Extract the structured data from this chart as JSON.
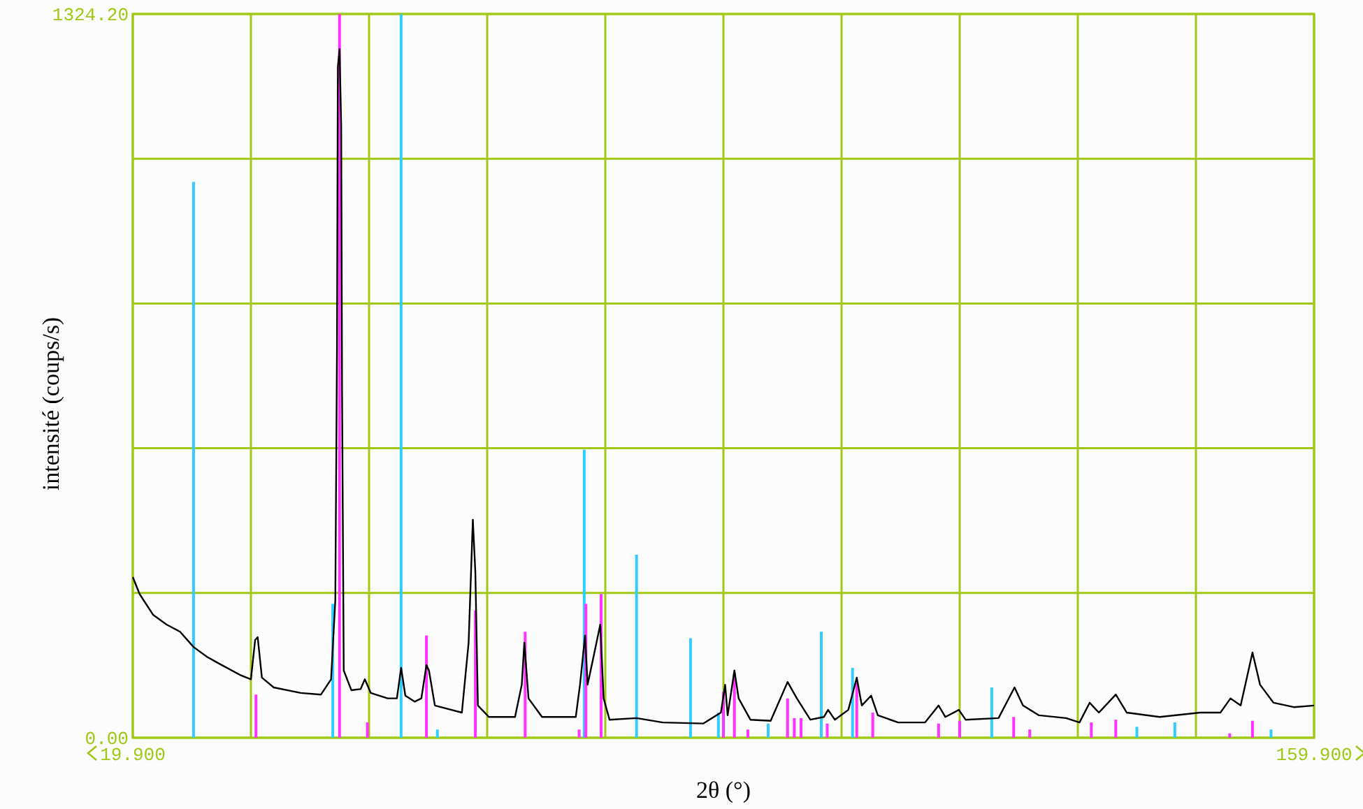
{
  "chart_data": {
    "type": "line",
    "xlabel": "2θ (°)",
    "ylabel": "intensité (coups/s)",
    "xlim": [
      19.9,
      159.9
    ],
    "ylim": [
      0,
      1324.2
    ],
    "xticks": [
      {
        "value": 19.9,
        "label": "19.900"
      },
      {
        "value": 33.9,
        "label": null
      },
      {
        "value": 47.9,
        "label": null
      },
      {
        "value": 61.9,
        "label": null
      },
      {
        "value": 75.9,
        "label": null
      },
      {
        "value": 89.9,
        "label": null
      },
      {
        "value": 103.9,
        "label": null
      },
      {
        "value": 117.9,
        "label": null
      },
      {
        "value": 131.9,
        "label": null
      },
      {
        "value": 145.9,
        "label": null
      },
      {
        "value": 159.9,
        "label": "159.900"
      }
    ],
    "yticks": [
      {
        "value": 0,
        "label": "0.00"
      },
      {
        "value": 264.84,
        "label": null
      },
      {
        "value": 529.68,
        "label": null
      },
      {
        "value": 794.52,
        "label": null
      },
      {
        "value": 1059.36,
        "label": null
      },
      {
        "value": 1324.2,
        "label": "1324.20"
      }
    ],
    "grid": true,
    "marker": "none",
    "line_style": "solid",
    "series": [
      {
        "color": "#000000",
        "x": [
          19.9,
          20.7,
          22.3,
          23.9,
          25.5,
          27.1,
          28.7,
          30.2,
          32.6,
          33.9,
          34.4,
          34.7,
          35.2,
          36.6,
          39.8,
          42.2,
          43.4,
          43.9,
          44.1,
          44.2,
          44.4,
          44.6,
          44.7,
          44.9,
          45.8,
          46.9,
          47.4,
          48.1,
          50.1,
          51.2,
          51.7,
          52.2,
          53.3,
          54.1,
          54.7,
          55.0,
          55.7,
          58.9,
          59.7,
          60.2,
          60.5,
          60.8,
          62.1,
          65.2,
          66.0,
          66.3,
          66.8,
          68.4,
          72.4,
          72.9,
          73.5,
          73.8,
          74.5,
          75.3,
          75.7,
          76.4,
          79.6,
          82.7,
          87.5,
          89.6,
          90.1,
          90.4,
          91.2,
          91.7,
          93.1,
          95.5,
          97.5,
          98.6,
          100.2,
          101.8,
          102.3,
          103.1,
          104.7,
          105.7,
          106.3,
          107.4,
          108.2,
          110.6,
          113.8,
          115.4,
          116.2,
          117.8,
          118.6,
          122.5,
          124.4,
          125.4,
          127.3,
          130.5,
          132.1,
          133.3,
          134.4,
          136.4,
          137.7,
          141.6,
          146.4,
          148.8,
          150.0,
          151.2,
          152.6,
          153.5,
          155.1,
          157.5,
          159.9
        ],
        "values": [
          294,
          263,
          225,
          207,
          194,
          166,
          148,
          135,
          115,
          107,
          179,
          184,
          110,
          92,
          82,
          79,
          107,
          251,
          711,
          1227,
          1260,
          1120,
          634,
          123,
          87,
          89,
          107,
          82,
          72,
          72,
          128,
          77,
          66,
          72,
          133,
          123,
          59,
          46,
          174,
          399,
          302,
          59,
          38,
          38,
          97,
          174,
          72,
          38,
          38,
          97,
          187,
          97,
          148,
          207,
          72,
          33,
          36,
          28,
          26,
          46,
          97,
          41,
          123,
          72,
          33,
          31,
          102,
          72,
          33,
          38,
          51,
          33,
          51,
          110,
          59,
          77,
          41,
          28,
          28,
          59,
          38,
          51,
          33,
          36,
          92,
          59,
          41,
          36,
          28,
          64,
          46,
          79,
          46,
          38,
          46,
          46,
          72,
          59,
          156,
          97,
          64,
          56,
          59
        ]
      },
      {
        "type": "bar",
        "color": "#33ccff",
        "x": [
          27.1,
          43.6,
          51.7,
          56.0,
          73.4,
          79.6,
          86.0,
          89.3,
          95.2,
          101.5,
          105.2,
          121.7,
          138.9,
          143.4,
          154.8
        ],
        "values": [
          1017,
          245,
          1324,
          15,
          527,
          335,
          182,
          46,
          26,
          194,
          128,
          92,
          20,
          28,
          15
        ]
      },
      {
        "type": "bar",
        "color": "#ff33ff",
        "x": [
          34.5,
          44.4,
          47.7,
          54.7,
          60.5,
          66.4,
          72.8,
          73.6,
          75.4,
          89.9,
          91.2,
          92.8,
          97.5,
          98.3,
          99.1,
          102.2,
          105.7,
          107.6,
          115.4,
          117.9,
          124.3,
          126.2,
          133.5,
          136.4,
          149.9,
          152.6
        ],
        "values": [
          79,
          1324,
          28,
          187,
          233,
          194,
          15,
          245,
          263,
          84,
          118,
          15,
          72,
          36,
          36,
          26,
          102,
          46,
          26,
          31,
          38,
          15,
          28,
          33,
          8,
          31
        ]
      }
    ]
  }
}
